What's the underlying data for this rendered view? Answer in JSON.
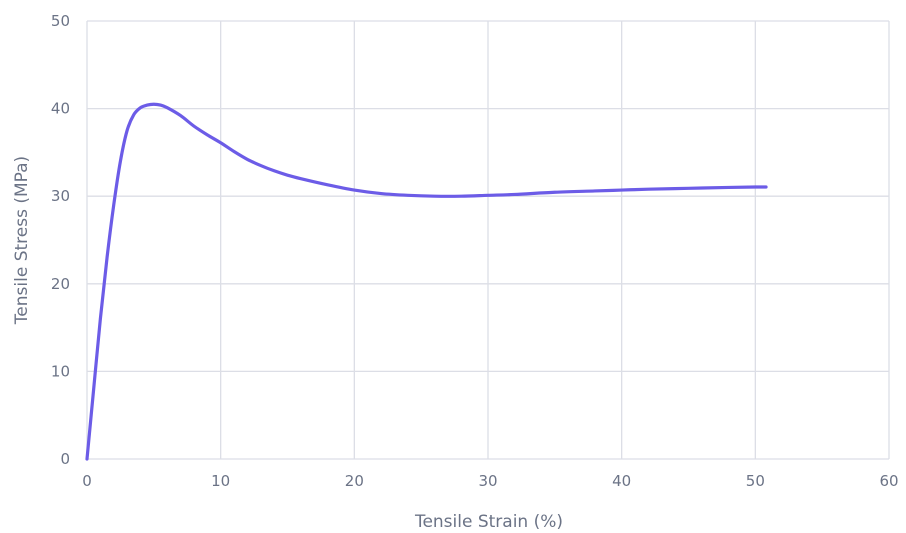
{
  "chart_data": {
    "type": "line",
    "title": "",
    "xlabel": "Tensile Strain (%)",
    "ylabel": "Tensile Stress (MPa)",
    "xlim": [
      0,
      60
    ],
    "ylim": [
      0,
      50
    ],
    "x_ticks": [
      "0",
      "10",
      "20",
      "30",
      "40",
      "50",
      "60"
    ],
    "y_ticks": [
      "0",
      "10",
      "20",
      "30",
      "40",
      "50"
    ],
    "grid": true,
    "legend": "none",
    "line_color": "#6c5ce7",
    "series": [
      {
        "x": [
          0,
          0.5,
          1,
          1.5,
          2,
          2.5,
          3,
          3.5,
          4,
          4.5,
          5,
          5.5,
          6,
          7,
          8,
          9,
          10,
          11,
          12,
          13,
          14,
          15,
          16,
          18,
          20,
          22,
          24,
          26,
          28,
          30,
          32,
          35,
          38,
          40,
          42,
          45,
          48,
          50,
          50.8
        ],
        "y": [
          0,
          8,
          16,
          23,
          29,
          34,
          37.5,
          39.3,
          40.1,
          40.4,
          40.5,
          40.4,
          40.1,
          39.2,
          38,
          37,
          36.1,
          35.1,
          34.2,
          33.5,
          32.9,
          32.4,
          32,
          31.3,
          30.7,
          30.3,
          30.1,
          30,
          30,
          30.1,
          30.2,
          30.45,
          30.6,
          30.7,
          30.8,
          30.9,
          31,
          31.05,
          31.05
        ]
      }
    ]
  }
}
